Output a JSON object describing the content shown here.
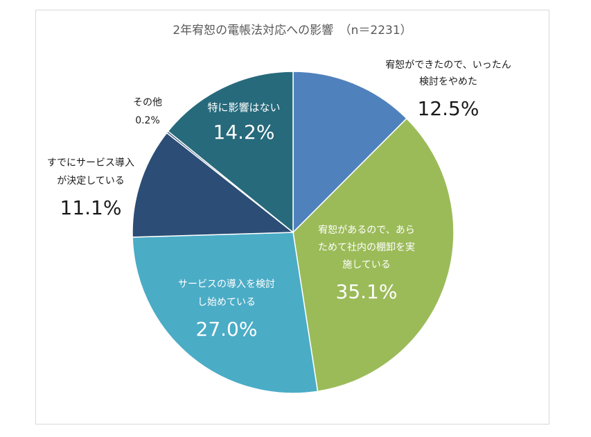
{
  "chart_data": {
    "type": "pie",
    "title": "2年宥恕の電帳法対応への影響　（n＝2231）",
    "start_angle_deg": 0,
    "direction": "clockwise",
    "slices": [
      {
        "lines": [
          "宥恕ができたので、いったん",
          "検討をやめた"
        ],
        "value": 12.5,
        "value_label": "12.5%",
        "color": "#4f81bd",
        "label_color": "dark"
      },
      {
        "lines": [
          "宥恕があるので、あら",
          "ためて社内の棚卸を実",
          "施している"
        ],
        "value": 35.1,
        "value_label": "35.1%",
        "color": "#9bbb59",
        "label_color": "light"
      },
      {
        "lines": [
          "サービスの導入を検討",
          "し始めている"
        ],
        "value": 27.0,
        "value_label": "27.0%",
        "color": "#4bacc6",
        "label_color": "light"
      },
      {
        "lines": [
          "すでにサービス導入",
          "が決定している"
        ],
        "value": 11.1,
        "value_label": "11.1%",
        "color": "#2c4d75",
        "label_color": "dark"
      },
      {
        "lines": [
          "その他"
        ],
        "value": 0.2,
        "value_label": "0.2%",
        "color": "#2c4d75",
        "label_color": "dark"
      },
      {
        "lines": [
          "特に影響はない"
        ],
        "value": 14.2,
        "value_label": "14.2%",
        "color": "#276a7c",
        "label_color": "light"
      }
    ],
    "legend": "none"
  }
}
